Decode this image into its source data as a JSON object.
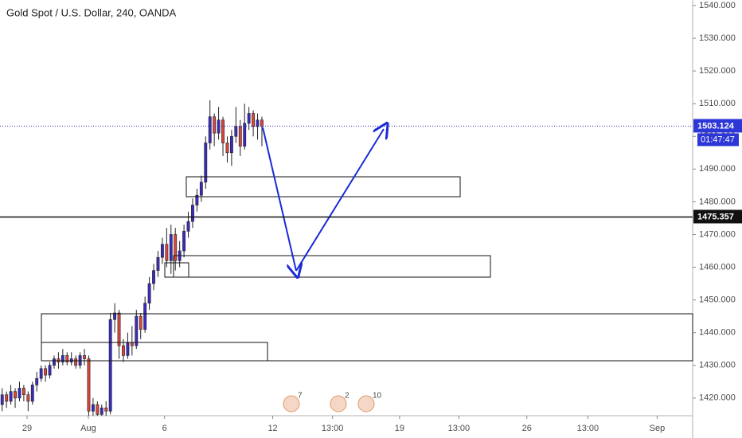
{
  "chart_data": {
    "type": "candlestick",
    "title": "Gold Spot / U.S. Dollar, 240, OANDA",
    "up_color": "#3b2cc0",
    "down_color": "#d9463b",
    "open": [
      1418,
      1421,
      1419,
      1422,
      1420,
      1423,
      1421,
      1419,
      1424,
      1426,
      1429,
      1427,
      1430,
      1432,
      1431,
      1433,
      1431,
      1432,
      1430,
      1433,
      1432,
      1416,
      1418,
      1415,
      1417,
      1416,
      1444,
      1446,
      1436,
      1433,
      1437,
      1436,
      1445,
      1441,
      1449,
      1455,
      1459,
      1463,
      1467,
      1462,
      1470,
      1462,
      1465,
      1471,
      1474,
      1479,
      1482,
      1486,
      1498,
      1506,
      1501,
      1505,
      1498,
      1495,
      1500,
      1503,
      1497,
      1504,
      1507,
      1503,
      1505
    ],
    "high": [
      1423,
      1422,
      1424,
      1423,
      1425,
      1424,
      1422,
      1425,
      1428,
      1430,
      1430,
      1431,
      1433,
      1434,
      1435,
      1434,
      1434,
      1433,
      1434,
      1435,
      1433,
      1420,
      1419,
      1418,
      1419,
      1446,
      1449,
      1447,
      1438,
      1440,
      1442,
      1447,
      1446,
      1451,
      1457,
      1461,
      1465,
      1469,
      1472,
      1473,
      1472,
      1468,
      1473,
      1477,
      1481,
      1484,
      1488,
      1500,
      1511,
      1507,
      1509,
      1506,
      1500,
      1502,
      1509,
      1505,
      1510,
      1509,
      1508,
      1507,
      1506
    ],
    "low": [
      1416,
      1417,
      1418,
      1417,
      1419,
      1419,
      1416,
      1418,
      1422,
      1425,
      1425,
      1426,
      1429,
      1429,
      1430,
      1430,
      1430,
      1429,
      1429,
      1430,
      1410,
      1412,
      1412,
      1413,
      1414,
      1415,
      1440,
      1432,
      1431,
      1432,
      1433,
      1435,
      1438,
      1440,
      1447,
      1453,
      1457,
      1461,
      1460,
      1458,
      1459,
      1460,
      1463,
      1469,
      1472,
      1477,
      1480,
      1484,
      1496,
      1497,
      1499,
      1494,
      1492,
      1491,
      1498,
      1494,
      1496,
      1502,
      1500,
      1499,
      1497
    ],
    "close": [
      1421,
      1419,
      1422,
      1420,
      1423,
      1421,
      1419,
      1424,
      1426,
      1429,
      1427,
      1430,
      1432,
      1431,
      1433,
      1431,
      1432,
      1430,
      1433,
      1432,
      1416,
      1418,
      1415,
      1417,
      1416,
      1444,
      1446,
      1436,
      1433,
      1437,
      1436,
      1445,
      1441,
      1449,
      1455,
      1459,
      1463,
      1467,
      1462,
      1470,
      1462,
      1465,
      1471,
      1474,
      1479,
      1482,
      1486,
      1498,
      1506,
      1501,
      1505,
      1498,
      1495,
      1500,
      1503,
      1497,
      1504,
      1507,
      1503,
      1505,
      1503
    ],
    "xlim": [
      0,
      160
    ],
    "ylim": [
      1414.6,
      1541.7
    ],
    "xticks": [
      {
        "value": 6.25,
        "label": "29"
      },
      {
        "value": 20.4,
        "label": "Aug"
      },
      {
        "value": 38,
        "label": "6"
      },
      {
        "value": 63,
        "label": "12"
      },
      {
        "value": 76.8,
        "label": "13:00"
      },
      {
        "value": 92.3,
        "label": "19"
      },
      {
        "value": 106,
        "label": "13:00"
      },
      {
        "value": 121.7,
        "label": "26"
      },
      {
        "value": 135.8,
        "label": "13:00"
      },
      {
        "value": 151.8,
        "label": "Sep"
      }
    ],
    "yticks": [
      {
        "value": 1420,
        "label": "1420.000"
      },
      {
        "value": 1430,
        "label": "1430.000"
      },
      {
        "value": 1440,
        "label": "1440.000"
      },
      {
        "value": 1450,
        "label": "1450.000"
      },
      {
        "value": 1460,
        "label": "1460.000"
      },
      {
        "value": 1470,
        "label": "1470.000"
      },
      {
        "value": 1480,
        "label": "1480.000"
      },
      {
        "value": 1490,
        "label": "1490.000"
      },
      {
        "value": 1500,
        "label": "1500.000"
      },
      {
        "value": 1510,
        "label": "1510.000"
      },
      {
        "value": 1520,
        "label": "1520.000"
      },
      {
        "value": 1530,
        "label": "1530.000"
      },
      {
        "value": 1540,
        "label": "1540.000"
      }
    ],
    "last_price": 1503.124,
    "countdown": "01:47:47",
    "horizontal_line": 1475.357,
    "events": [
      "7",
      "2",
      "10"
    ]
  }
}
